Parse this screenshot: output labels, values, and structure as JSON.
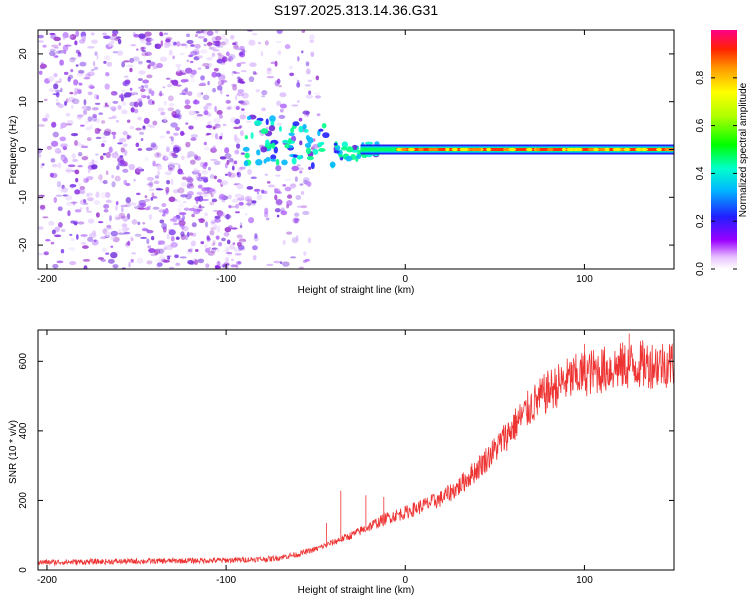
{
  "title": "S197.2025.313.14.36.G31",
  "chart_data": [
    {
      "type": "heatmap",
      "name": "spectrogram",
      "xlabel": "Height of straight line (km)",
      "ylabel": "Frequency (Hz)",
      "xlim": [
        -205,
        150
      ],
      "ylim": [
        -25,
        25
      ],
      "xticks": [
        -200,
        -100,
        0,
        100
      ],
      "yticks": [
        -20,
        -10,
        0,
        10,
        20
      ],
      "colorbar": {
        "label": "Normalized spectral amplitude",
        "range": [
          0,
          1
        ],
        "ticks": [
          "0.0",
          "0.2",
          "0.4",
          "0.6",
          "0.8"
        ]
      },
      "description_values": {
        "noise_region_x": [
          -205,
          -48
        ],
        "signal_onset_x": -90,
        "carrier_frequency_hz": 0
      }
    },
    {
      "type": "line",
      "name": "snr",
      "xlabel": "Height of straight line (km)",
      "ylabel": "SNR (10 * v/v)",
      "xlim": [
        -205,
        150
      ],
      "ylim": [
        0,
        690
      ],
      "xticks": [
        -200,
        -100,
        0,
        100
      ],
      "yticks": [
        0,
        200,
        400,
        600
      ],
      "color": "#ee3333",
      "trend": {
        "x": [
          -205,
          -150,
          -100,
          -75,
          -60,
          -50,
          -40,
          -30,
          -20,
          -10,
          0,
          10,
          20,
          30,
          40,
          50,
          60,
          70,
          80,
          90,
          100,
          110,
          120,
          130,
          140,
          150
        ],
        "y": [
          22,
          25,
          28,
          32,
          45,
          60,
          80,
          100,
          125,
          150,
          165,
          185,
          205,
          240,
          290,
          345,
          410,
          470,
          515,
          545,
          565,
          575,
          585,
          590,
          592,
          595
        ]
      },
      "spikes": [
        {
          "x": -36,
          "y": 228
        },
        {
          "x": -44,
          "y": 135
        },
        {
          "x": -22,
          "y": 215
        },
        {
          "x": -12,
          "y": 210
        },
        {
          "x": 100,
          "y": 650
        },
        {
          "x": 125,
          "y": 680
        }
      ]
    }
  ]
}
